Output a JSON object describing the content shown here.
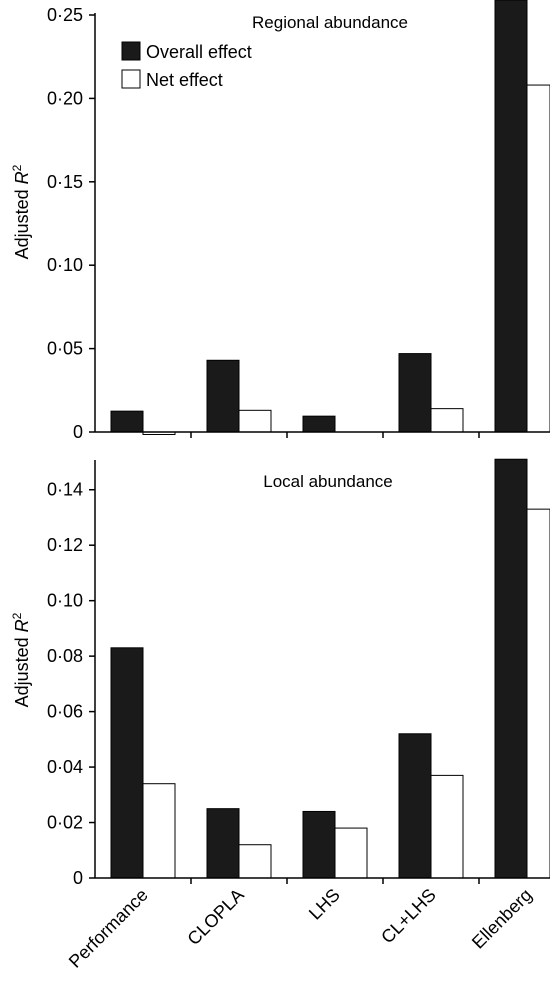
{
  "chart_data": [
    {
      "type": "bar",
      "title": "Regional abundance",
      "ylabel_prefix": "Adjusted ",
      "ylabel_var": "R",
      "ylabel_sup": "2",
      "ylim": [
        0,
        0.25
      ],
      "yticks": [
        0,
        0.05,
        0.1,
        0.15,
        0.2,
        0.25
      ],
      "yticklabels": [
        "0",
        "0·05",
        "0·10",
        "0·15",
        "0·20",
        "0·25"
      ],
      "categories": [
        "Performance",
        "CLOPLA",
        "LHS",
        "CL+LHS",
        "Ellenberg"
      ],
      "series": [
        {
          "name": "Overall effect",
          "values": [
            0.0125,
            0.043,
            0.0095,
            0.047,
            0.26
          ],
          "color": "#1a1a1a"
        },
        {
          "name": "Net effect",
          "values": [
            -0.0015,
            0.013,
            0.0,
            0.014,
            0.208
          ],
          "color": "#ffffff"
        }
      ],
      "legend": "top-left",
      "grid": false
    },
    {
      "type": "bar",
      "title": "Local abundance",
      "ylabel_prefix": "Adjusted ",
      "ylabel_var": "R",
      "ylabel_sup": "2",
      "ylim": [
        0,
        0.15
      ],
      "yticks": [
        0,
        0.02,
        0.04,
        0.06,
        0.08,
        0.1,
        0.12,
        0.14
      ],
      "yticklabels": [
        "0",
        "0·02",
        "0·04",
        "0·06",
        "0·08",
        "0·10",
        "0·12",
        "0·14"
      ],
      "categories": [
        "Performance",
        "CLOPLA",
        "LHS",
        "CL+LHS",
        "Ellenberg"
      ],
      "series": [
        {
          "name": "Overall effect",
          "values": [
            0.083,
            0.025,
            0.024,
            0.052,
            0.151
          ],
          "color": "#1a1a1a"
        },
        {
          "name": "Net effect",
          "values": [
            0.034,
            0.012,
            0.018,
            0.037,
            0.133
          ],
          "color": "#ffffff"
        }
      ],
      "grid": false
    }
  ]
}
